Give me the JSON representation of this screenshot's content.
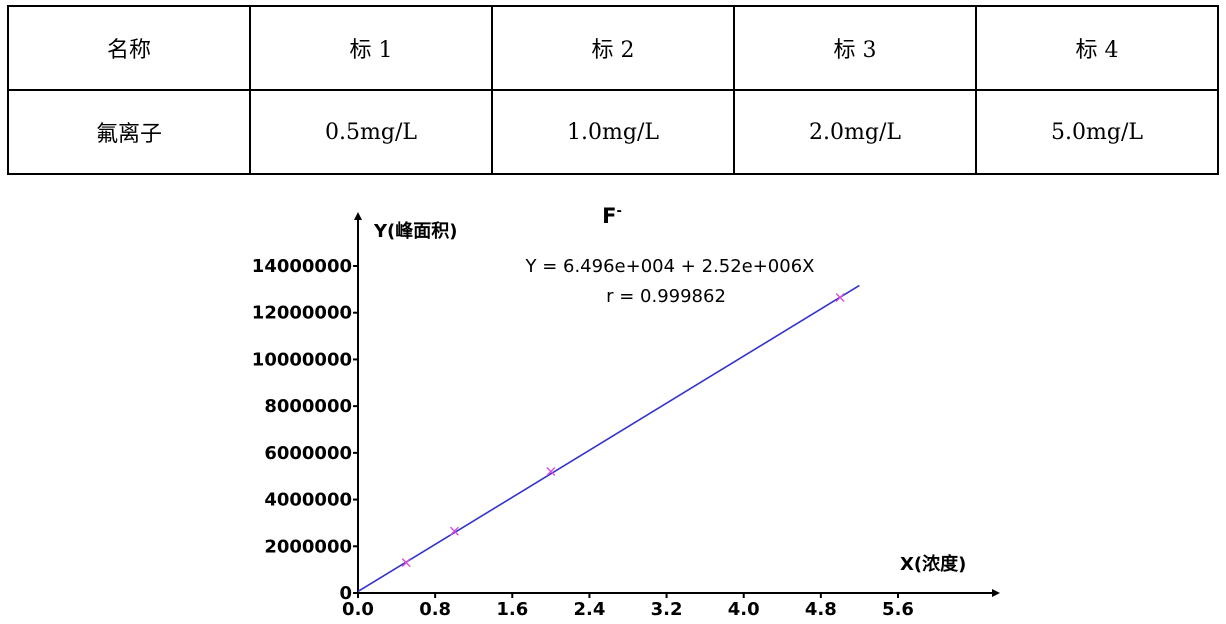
{
  "table": {
    "header": [
      "名称",
      "标 1",
      "标 2",
      "标 3",
      "标 4"
    ],
    "rows": [
      [
        "氟离子",
        "0.5mg/L",
        "1.0mg/L",
        "2.0mg/L",
        "5.0mg/L"
      ]
    ]
  },
  "chart_data": {
    "type": "scatter",
    "title": "F",
    "title_superscript": "-",
    "xlabel": "X(浓度)",
    "ylabel": "Y(峰面积)",
    "xlim": [
      0,
      6.4
    ],
    "ylim": [
      0,
      15000000
    ],
    "x_ticks": [
      "0.0",
      "0.8",
      "1.6",
      "2.4",
      "3.2",
      "4.0",
      "4.8",
      "5.6"
    ],
    "y_ticks": [
      "0",
      "2000000",
      "4000000",
      "6000000",
      "8000000",
      "10000000",
      "12000000",
      "14000000"
    ],
    "equation": "Y = 6.496e+004 + 2.52e+006X",
    "r_value": "r = 0.999862",
    "points": [
      {
        "x": 0.5,
        "y": 1300000
      },
      {
        "x": 1.0,
        "y": 2650000
      },
      {
        "x": 2.0,
        "y": 5200000
      },
      {
        "x": 5.0,
        "y": 12650000
      }
    ],
    "fit_line": {
      "intercept": 64960,
      "slope": 2520000,
      "x_range": [
        0,
        5.2
      ]
    },
    "colors": {
      "fit_line": "#3333cc",
      "points": "#d94fd9",
      "axis": "#000000"
    },
    "grid": false
  }
}
